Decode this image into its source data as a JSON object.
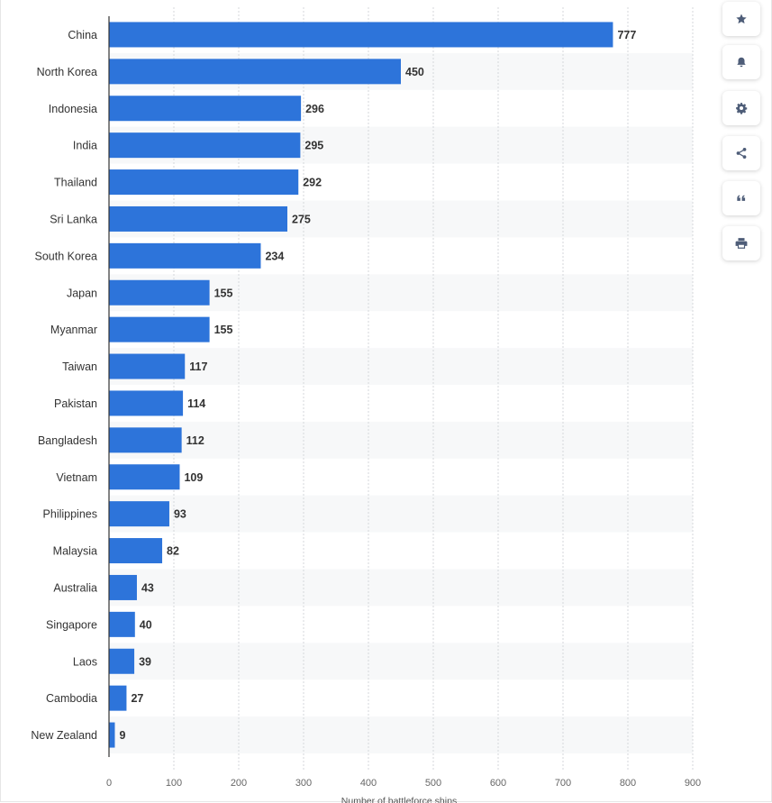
{
  "chart_data": {
    "type": "bar",
    "orientation": "horizontal",
    "categories": [
      "China",
      "North Korea",
      "Indonesia",
      "India",
      "Thailand",
      "Sri Lanka",
      "South Korea",
      "Japan",
      "Myanmar",
      "Taiwan",
      "Pakistan",
      "Bangladesh",
      "Vietnam",
      "Philippines",
      "Malaysia",
      "Australia",
      "Singapore",
      "Laos",
      "Cambodia",
      "New Zealand"
    ],
    "values": [
      777,
      450,
      296,
      295,
      292,
      275,
      234,
      155,
      155,
      117,
      114,
      112,
      109,
      93,
      82,
      43,
      40,
      39,
      27,
      9
    ],
    "xlabel": "Number of battleforce ships",
    "ylabel": "",
    "xlim": [
      0,
      900
    ],
    "xticks": [
      "0",
      "100",
      "200",
      "300",
      "400",
      "500",
      "600",
      "700",
      "800",
      "900"
    ],
    "bar_color": "#2d74da",
    "grid": true
  },
  "toolbar": {
    "buttons": [
      {
        "name": "favorite-button",
        "icon": "star-icon"
      },
      {
        "name": "notification-button",
        "icon": "bell-icon"
      },
      {
        "name": "settings-button",
        "icon": "gear-icon"
      },
      {
        "name": "share-button",
        "icon": "share-icon"
      },
      {
        "name": "cite-button",
        "icon": "quote-icon"
      },
      {
        "name": "print-button",
        "icon": "printer-icon"
      }
    ],
    "icon_color": "#4e5d78"
  }
}
